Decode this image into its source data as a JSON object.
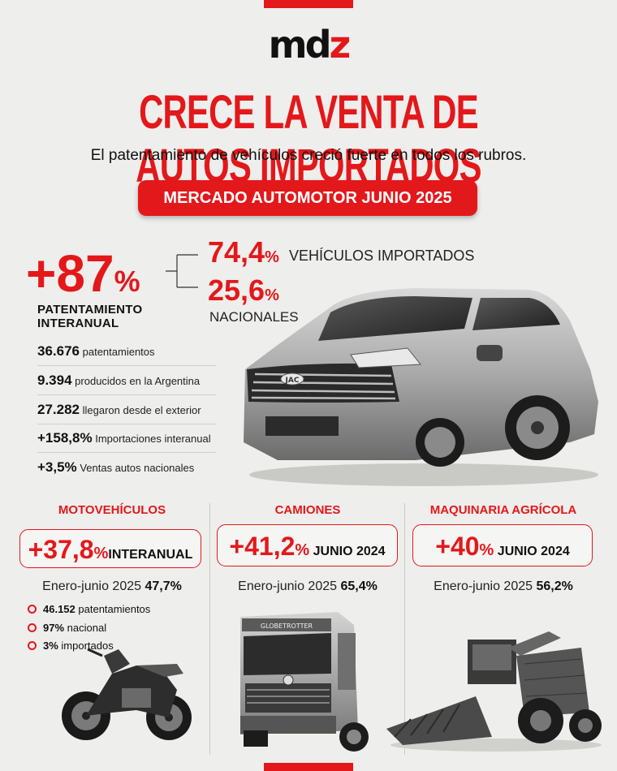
{
  "brand": {
    "logo_main": "md",
    "logo_accent": "z"
  },
  "headline": "CRECE LA VENTA DE AUTOS IMPORTADOS",
  "subheadline": "El patentamiento de vehículos creció fuerte en todos los rubros.",
  "banner": "MERCADO AUTOMOTOR JUNIO 2025",
  "main_stat": {
    "value": "+87",
    "unit": "%",
    "label_line1": "PATENTAMIENTO",
    "label_line2": "INTERANUAL"
  },
  "split": {
    "imported_value": "74,4",
    "imported_unit": "%",
    "imported_label": "VEHÍCULOS IMPORTADOS",
    "national_value": "25,6",
    "national_unit": "%",
    "national_label": "NACIONALES"
  },
  "stats": [
    {
      "value": "36.676",
      "label": "patentamientos"
    },
    {
      "value": "9.394",
      "label": "producidos en la Argentina"
    },
    {
      "value": "27.282",
      "label": "llegaron desde el exterior"
    },
    {
      "value": "+158,8%",
      "label": "Importaciones interanual"
    },
    {
      "value": "+3,5%",
      "label": "Ventas autos nacionales"
    }
  ],
  "sections": [
    {
      "title": "MOTOVEHÍCULOS",
      "value": "+37,8",
      "unit": "%",
      "tag": "INTERANUAL",
      "ytd_label": "Enero-junio 2025",
      "ytd_value": "47,7%"
    },
    {
      "title": "CAMIONES",
      "value": "+41,2",
      "unit": "%",
      "tag": "JUNIO 2024",
      "ytd_label": "Enero-junio 2025",
      "ytd_value": "65,4%"
    },
    {
      "title": "MAQUINARIA AGRÍCOLA",
      "value": "+40",
      "unit": "%",
      "tag": "JUNIO 2024",
      "ytd_label": "Enero-junio 2025",
      "ytd_value": "56,2%"
    }
  ],
  "moto_bullets": [
    {
      "value": "46.152",
      "label": "patentamientos"
    },
    {
      "value": "97%",
      "label": "nacional"
    },
    {
      "value": "3%",
      "label": "importados"
    }
  ],
  "truck_visor_text": "GLOBETROTTER",
  "car_badge": "JAC",
  "colors": {
    "accent": "#e3181b",
    "background": "#eeeeec",
    "text": "#111111"
  }
}
